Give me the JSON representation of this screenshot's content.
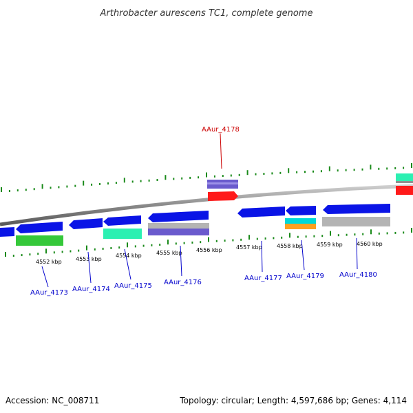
{
  "title": "Arthrobacter aurescens TC1, complete genome",
  "footer": {
    "accession": "Accession: NC_008711",
    "summary": "Topology: circular; Length: 4,597,686 bp; Genes: 4,114"
  },
  "colors": {
    "blue": "#0a14e6",
    "red": "#ff1a1a",
    "green": "#35c83a",
    "aqua": "#2cf0b2",
    "gray": "#b4b4b4",
    "purple": "#6a5acd",
    "cyan": "#00d8d8",
    "orange": "#ffa020",
    "tick": "#1a8a1a",
    "backbone": "#8a8a8a",
    "label_blue": "#0000cc",
    "label_red": "#cc0000"
  },
  "kbp_marks": [
    {
      "label": "4552 kbp"
    },
    {
      "label": "4553 kbp"
    },
    {
      "label": "4554 kbp"
    },
    {
      "label": "4555 kbp"
    },
    {
      "label": "4556 kbp"
    },
    {
      "label": "4557 kbp"
    },
    {
      "label": "4558 kbp"
    },
    {
      "label": "4559 kbp"
    },
    {
      "label": "4560 kbp"
    }
  ],
  "gene_labels": [
    {
      "text": "AAur_4173"
    },
    {
      "text": "AAur_4174"
    },
    {
      "text": "AAur_4175"
    },
    {
      "text": "AAur_4176"
    },
    {
      "text": "AAur_4177"
    },
    {
      "text": "AAur_4179"
    },
    {
      "text": "AAur_4180"
    },
    {
      "text": "AAur_4178"
    }
  ]
}
